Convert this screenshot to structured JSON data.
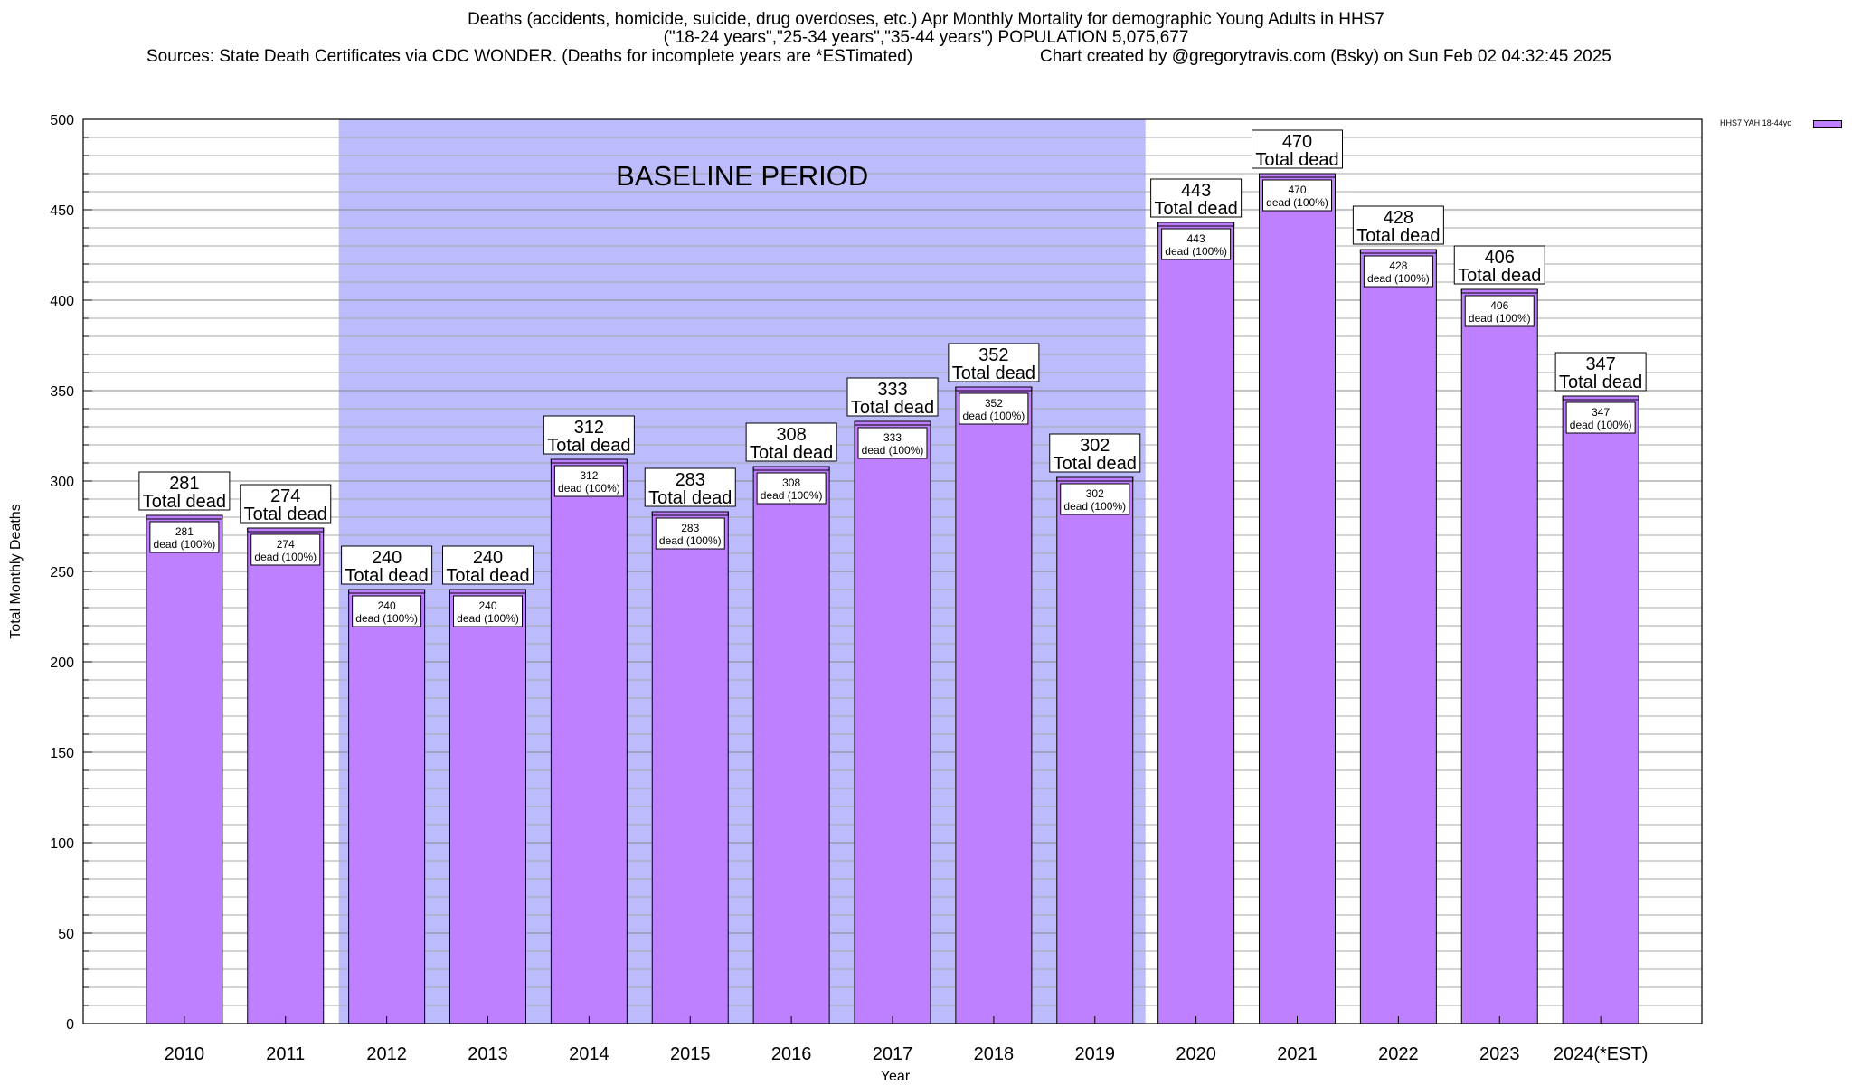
{
  "chart_data": {
    "type": "bar",
    "title": "Deaths (accidents, homicide, suicide, drug overdoses, etc.) Apr Monthly Mortality for demographic Young Adults in HHS7",
    "subtitle": "(\"18-24 years\",\"25-34 years\",\"35-44 years\") POPULATION 5,075,677",
    "source": "Sources: State Death Certificates via CDC WONDER. (Deaths for incomplete years are *ESTimated)",
    "credit": "Chart created by @gregorytravis.com (Bsky) on Sun Feb 02 04:32:45 2025",
    "xlabel": "Year",
    "ylabel": "Total Monthly Deaths",
    "ylim": [
      0,
      500
    ],
    "yticks": [
      0,
      50,
      100,
      150,
      200,
      250,
      300,
      350,
      400,
      450,
      500
    ],
    "minor_tick_step": 10,
    "grid": true,
    "categories": [
      "2010",
      "2011",
      "2012",
      "2013",
      "2014",
      "2015",
      "2016",
      "2017",
      "2018",
      "2019",
      "2020",
      "2021",
      "2022",
      "2023",
      "2024(*EST)"
    ],
    "series": [
      {
        "name": "HHS7 YAH 18-44yo",
        "color": "#bf80ff",
        "values": [
          281,
          274,
          240,
          240,
          312,
          283,
          308,
          333,
          352,
          302,
          443,
          470,
          428,
          406,
          347
        ]
      }
    ],
    "total_label_suffix": "Total dead",
    "inner_label_suffix": "dead (100%)",
    "baseline_region": {
      "label": "BASELINE PERIOD",
      "start_category": "2012",
      "end_category": "2019",
      "color": "#bcbcfc"
    },
    "legend_position": "top-right"
  }
}
